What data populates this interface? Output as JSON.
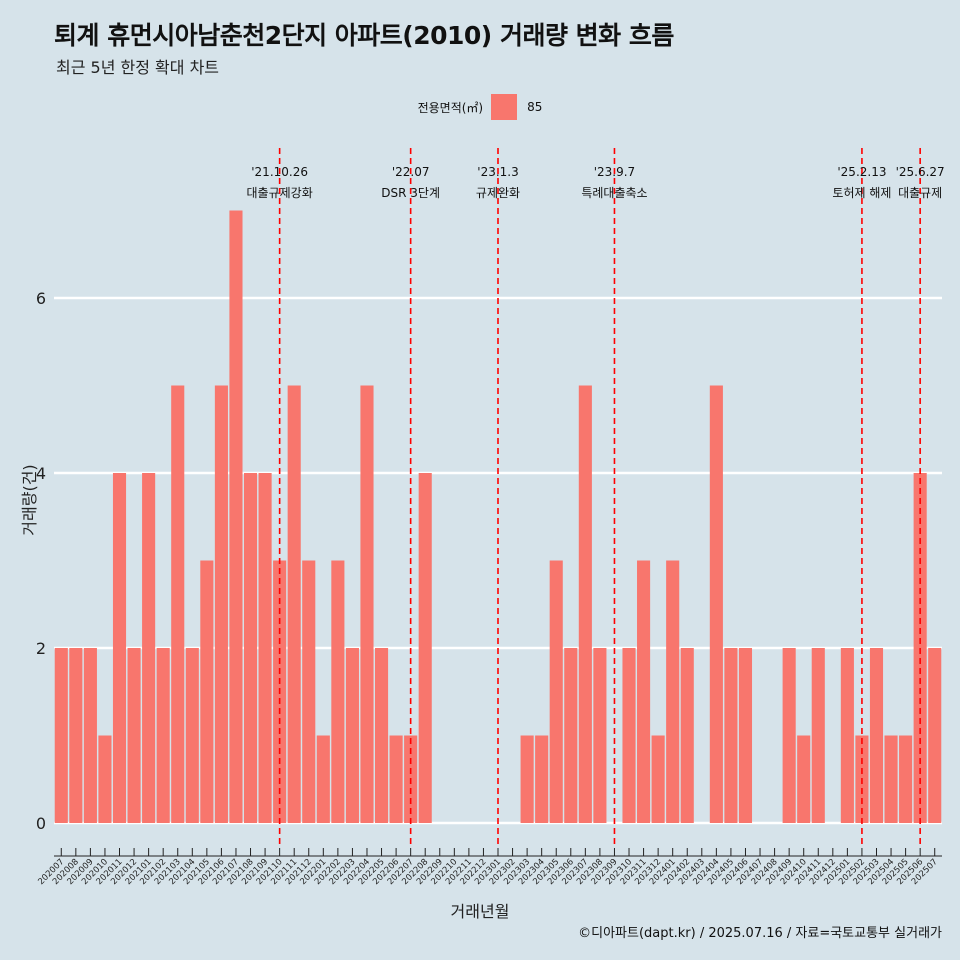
{
  "header": {
    "title": "퇴계 휴먼시아남춘천2단지 아파트(2010) 거래량 변화 흐름",
    "subtitle": "최근 5년 한정 확대 차트"
  },
  "legend": {
    "title": "전용면적(㎡)",
    "items": [
      {
        "label": "85",
        "color": "#f8766d"
      }
    ]
  },
  "caption": "©디아파트(dapt.kr) / 2025.07.16 / 자료=국토교통부 실거래가",
  "chart_data": {
    "type": "bar",
    "xlabel": "거래년월",
    "ylabel": "거래량(건)",
    "ylim": [
      0,
      7.5
    ],
    "yticks": [
      0,
      2,
      4,
      6
    ],
    "grid": true,
    "legend_position": "top",
    "bar_color": "#f8766d",
    "categories": [
      "202007",
      "202008",
      "202009",
      "202010",
      "202011",
      "202012",
      "202101",
      "202102",
      "202103",
      "202104",
      "202105",
      "202106",
      "202107",
      "202108",
      "202109",
      "202110",
      "202111",
      "202112",
      "202201",
      "202202",
      "202203",
      "202204",
      "202205",
      "202206",
      "202207",
      "202208",
      "202209",
      "202210",
      "202211",
      "202212",
      "202301",
      "202302",
      "202303",
      "202304",
      "202305",
      "202306",
      "202307",
      "202308",
      "202309",
      "202310",
      "202311",
      "202312",
      "202401",
      "202402",
      "202403",
      "202404",
      "202405",
      "202406",
      "202407",
      "202408",
      "202409",
      "202410",
      "202411",
      "202412",
      "202501",
      "202502",
      "202503",
      "202504",
      "202505",
      "202506",
      "202507"
    ],
    "series": [
      {
        "name": "85",
        "values": [
          2,
          2,
          2,
          1,
          4,
          2,
          4,
          2,
          5,
          2,
          3,
          5,
          7,
          4,
          4,
          3,
          5,
          3,
          1,
          3,
          2,
          5,
          2,
          1,
          1,
          4,
          0,
          0,
          0,
          0,
          0,
          0,
          1,
          1,
          3,
          2,
          5,
          2,
          0,
          2,
          3,
          1,
          3,
          2,
          0,
          5,
          2,
          2,
          0,
          0,
          2,
          1,
          2,
          0,
          2,
          1,
          2,
          1,
          1,
          4,
          2
        ]
      }
    ],
    "annotations": [
      {
        "month": "202110",
        "date_label": "'21.10.26",
        "text": "대출규제강화",
        "color": "#ff0000"
      },
      {
        "month": "202207",
        "date_label": "'22.07",
        "text": "DSR 3단계",
        "color": "#ff0000"
      },
      {
        "month": "202301",
        "date_label": "'23.1.3",
        "text": "규제완화",
        "color": "#ff0000"
      },
      {
        "month": "202309",
        "date_label": "'23.9.7",
        "text": "특례대출축소",
        "color": "#ff0000"
      },
      {
        "month": "202502",
        "date_label": "'25.2.13",
        "text": "토허제 해제",
        "color": "#ff0000"
      },
      {
        "month": "202506",
        "date_label": "'25.6.27",
        "text": "대출규제",
        "color": "#ff0000"
      }
    ]
  }
}
